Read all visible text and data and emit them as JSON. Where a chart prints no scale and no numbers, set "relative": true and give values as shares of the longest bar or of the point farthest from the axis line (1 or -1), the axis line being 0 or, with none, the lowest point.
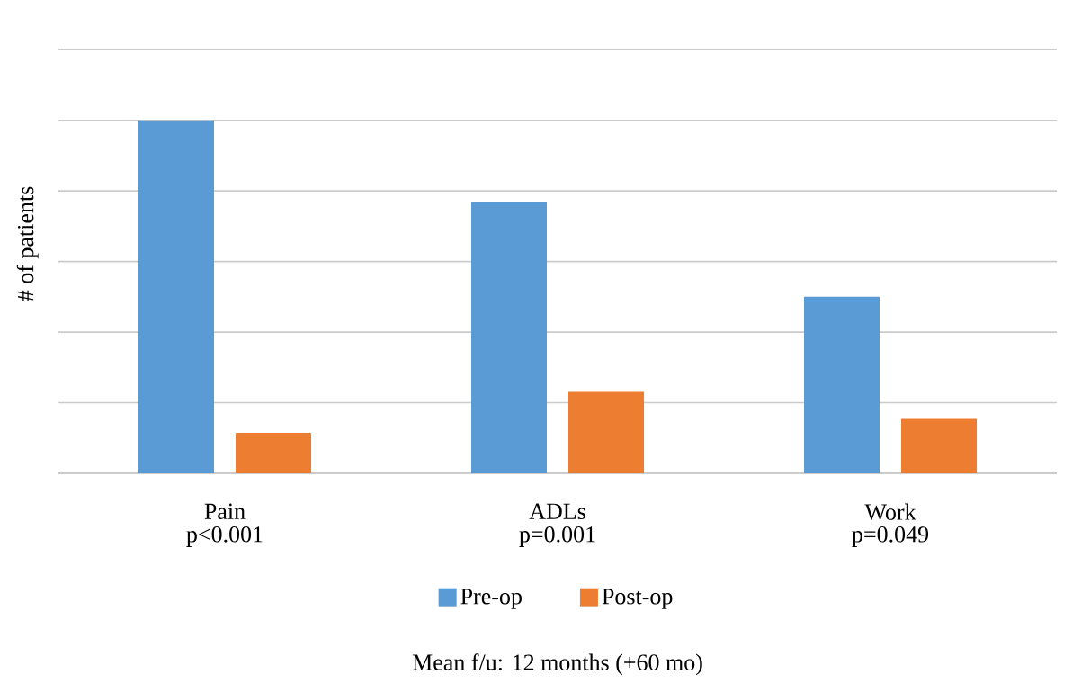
{
  "chart_data": {
    "type": "bar",
    "relative": true,
    "ylabel": "# of patients",
    "categories": [
      "Pain",
      "ADLs",
      "Work"
    ],
    "series": [
      {
        "name": "Pre-op",
        "color": "#5b9bd5",
        "values": [
          1,
          0.769,
          0.5
        ]
      },
      {
        "name": "Post-op",
        "color": "#ed7d31",
        "values": [
          0.115,
          0.231,
          0.154
        ]
      }
    ],
    "annotations": [
      "p<0.001",
      "p=0.001",
      "p=0.049",
      "Mean f/u: 12 months (+60 mo)"
    ],
    "grid": "y",
    "legend": "bottom"
  }
}
